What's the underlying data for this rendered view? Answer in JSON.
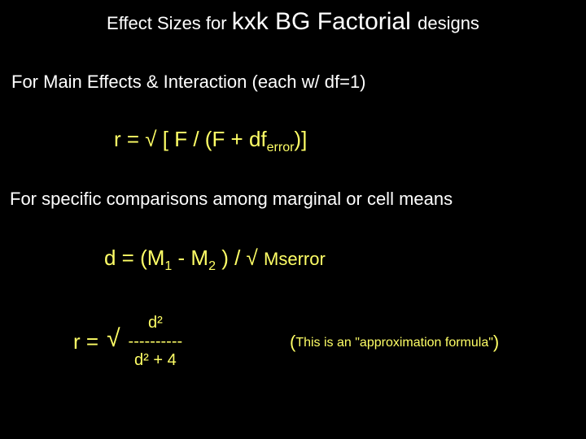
{
  "colors": {
    "background": "#000000",
    "text": "#ffffff",
    "accent": "#ffff66"
  },
  "title": {
    "pre": "Effect Sizes for ",
    "kxk": "kxk BG Factorial ",
    "post": "designs"
  },
  "line1": "For Main Effects & Interaction (each w/ df=1)",
  "formula1": {
    "lhs": "r  =  √ [ F / (F + df",
    "sub": "error",
    "rhs": ")]"
  },
  "line2": "For specific comparisons among marginal or cell means",
  "formula2": {
    "lhs": "d =  (M",
    "sub1": "1",
    "mid1": " - M",
    "sub2": "2",
    "mid2": " )  / √ ",
    "ms": "Mserror"
  },
  "formula3": {
    "lhs": "r  =",
    "sqrt": "√",
    "num": "d²",
    "dash": "----------",
    "den": "d² + 4"
  },
  "note": {
    "open": "(",
    "body": "This is an \"approximation formula\"",
    "close": ")"
  }
}
